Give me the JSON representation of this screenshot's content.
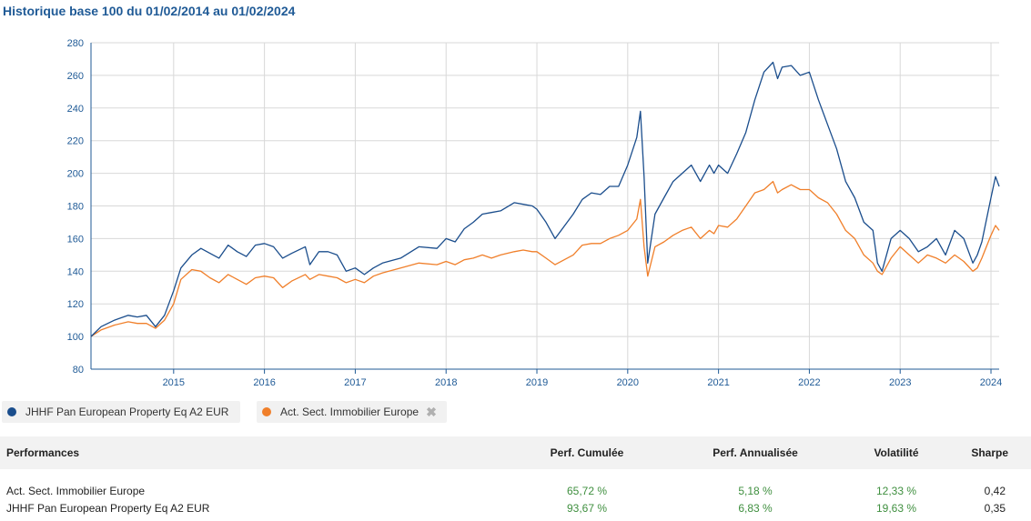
{
  "title": "Historique base 100 du 01/02/2014 au 01/02/2024",
  "chart_data": {
    "type": "line",
    "ylim": [
      80,
      280
    ],
    "yticks": [
      80,
      100,
      120,
      140,
      160,
      180,
      200,
      220,
      240,
      260,
      280
    ],
    "xlim": [
      2014.09,
      2024.09
    ],
    "xticks": [
      "2015",
      "2016",
      "2017",
      "2018",
      "2019",
      "2020",
      "2021",
      "2022",
      "2023",
      "2024"
    ],
    "series": [
      {
        "name": "JHHF Pan European Property Eq A2 EUR",
        "color": "#1a4d8c",
        "x": [
          2014.09,
          2014.2,
          2014.35,
          2014.5,
          2014.6,
          2014.7,
          2014.8,
          2014.9,
          2015.0,
          2015.08,
          2015.2,
          2015.3,
          2015.4,
          2015.5,
          2015.6,
          2015.7,
          2015.8,
          2015.9,
          2016.0,
          2016.1,
          2016.2,
          2016.3,
          2016.45,
          2016.5,
          2016.6,
          2016.7,
          2016.8,
          2016.9,
          2017.0,
          2017.1,
          2017.2,
          2017.3,
          2017.5,
          2017.7,
          2017.9,
          2018.0,
          2018.1,
          2018.2,
          2018.3,
          2018.4,
          2018.5,
          2018.6,
          2018.75,
          2018.85,
          2018.95,
          2019.0,
          2019.1,
          2019.2,
          2019.4,
          2019.5,
          2019.6,
          2019.7,
          2019.8,
          2019.9,
          2020.0,
          2020.1,
          2020.14,
          2020.18,
          2020.22,
          2020.3,
          2020.4,
          2020.5,
          2020.6,
          2020.7,
          2020.8,
          2020.9,
          2020.95,
          2021.0,
          2021.1,
          2021.2,
          2021.3,
          2021.4,
          2021.5,
          2021.6,
          2021.65,
          2021.7,
          2021.8,
          2021.9,
          2022.0,
          2022.1,
          2022.2,
          2022.3,
          2022.4,
          2022.5,
          2022.6,
          2022.7,
          2022.75,
          2022.8,
          2022.9,
          2023.0,
          2023.1,
          2023.2,
          2023.3,
          2023.4,
          2023.5,
          2023.6,
          2023.7,
          2023.8,
          2023.85,
          2023.9,
          2024.0,
          2024.05,
          2024.09
        ],
        "y": [
          100,
          106,
          110,
          113,
          112,
          113,
          106,
          113,
          128,
          142,
          150,
          154,
          151,
          148,
          156,
          152,
          149,
          156,
          157,
          155,
          148,
          151,
          155,
          144,
          152,
          152,
          150,
          140,
          142,
          138,
          142,
          145,
          148,
          155,
          154,
          160,
          158,
          166,
          170,
          175,
          176,
          177,
          182,
          181,
          180,
          178,
          170,
          160,
          175,
          184,
          188,
          187,
          192,
          192,
          205,
          222,
          238,
          198,
          145,
          175,
          185,
          195,
          200,
          205,
          195,
          205,
          200,
          205,
          200,
          212,
          225,
          245,
          262,
          268,
          258,
          265,
          266,
          260,
          262,
          245,
          230,
          215,
          195,
          185,
          170,
          165,
          145,
          140,
          160,
          165,
          160,
          152,
          155,
          160,
          150,
          165,
          160,
          145,
          150,
          158,
          185,
          198,
          192
        ]
      },
      {
        "name": "Act. Sect. Immobilier Europe",
        "color": "#f07f2a",
        "x": [
          2014.09,
          2014.2,
          2014.35,
          2014.5,
          2014.6,
          2014.7,
          2014.8,
          2014.9,
          2015.0,
          2015.08,
          2015.2,
          2015.3,
          2015.4,
          2015.5,
          2015.6,
          2015.7,
          2015.8,
          2015.9,
          2016.0,
          2016.1,
          2016.2,
          2016.3,
          2016.45,
          2016.5,
          2016.6,
          2016.7,
          2016.8,
          2016.9,
          2017.0,
          2017.1,
          2017.2,
          2017.3,
          2017.5,
          2017.7,
          2017.9,
          2018.0,
          2018.1,
          2018.2,
          2018.3,
          2018.4,
          2018.5,
          2018.6,
          2018.75,
          2018.85,
          2018.95,
          2019.0,
          2019.1,
          2019.2,
          2019.4,
          2019.5,
          2019.6,
          2019.7,
          2019.8,
          2019.9,
          2020.0,
          2020.1,
          2020.14,
          2020.18,
          2020.22,
          2020.3,
          2020.4,
          2020.5,
          2020.6,
          2020.7,
          2020.8,
          2020.9,
          2020.95,
          2021.0,
          2021.1,
          2021.2,
          2021.3,
          2021.4,
          2021.5,
          2021.6,
          2021.65,
          2021.7,
          2021.8,
          2021.9,
          2022.0,
          2022.1,
          2022.2,
          2022.3,
          2022.4,
          2022.5,
          2022.6,
          2022.7,
          2022.75,
          2022.8,
          2022.9,
          2023.0,
          2023.1,
          2023.2,
          2023.3,
          2023.4,
          2023.5,
          2023.6,
          2023.7,
          2023.8,
          2023.85,
          2023.9,
          2024.0,
          2024.05,
          2024.09
        ],
        "y": [
          100,
          104,
          107,
          109,
          108,
          108,
          105,
          110,
          120,
          135,
          141,
          140,
          136,
          133,
          138,
          135,
          132,
          136,
          137,
          136,
          130,
          134,
          138,
          135,
          138,
          137,
          136,
          133,
          135,
          133,
          137,
          139,
          142,
          145,
          144,
          146,
          144,
          147,
          148,
          150,
          148,
          150,
          152,
          153,
          152,
          152,
          148,
          144,
          150,
          156,
          157,
          157,
          160,
          162,
          165,
          172,
          184,
          155,
          137,
          155,
          158,
          162,
          165,
          167,
          160,
          165,
          163,
          168,
          167,
          172,
          180,
          188,
          190,
          195,
          188,
          190,
          193,
          190,
          190,
          185,
          182,
          175,
          165,
          160,
          150,
          145,
          140,
          138,
          148,
          155,
          150,
          145,
          150,
          148,
          145,
          150,
          146,
          140,
          142,
          148,
          162,
          168,
          165
        ]
      }
    ]
  },
  "legend": [
    {
      "label": "JHHF Pan European Property Eq A2 EUR",
      "color": "#1a4d8c",
      "closable": false
    },
    {
      "label": "Act. Sect. Immobilier Europe",
      "color": "#f07f2a",
      "closable": true
    }
  ],
  "table": {
    "headers": [
      "Performances",
      "Perf. Cumulée",
      "Perf. Annualisée",
      "Volatilité",
      "Sharpe"
    ],
    "rows": [
      {
        "name": "Act. Sect. Immobilier Europe",
        "cumul": "65,72 %",
        "annual": "5,18 %",
        "vol": "12,33 %",
        "sharpe": "0,42"
      },
      {
        "name": "JHHF Pan European Property Eq A2 EUR",
        "cumul": "93,67 %",
        "annual": "6,83 %",
        "vol": "19,63 %",
        "sharpe": "0,35"
      }
    ]
  }
}
